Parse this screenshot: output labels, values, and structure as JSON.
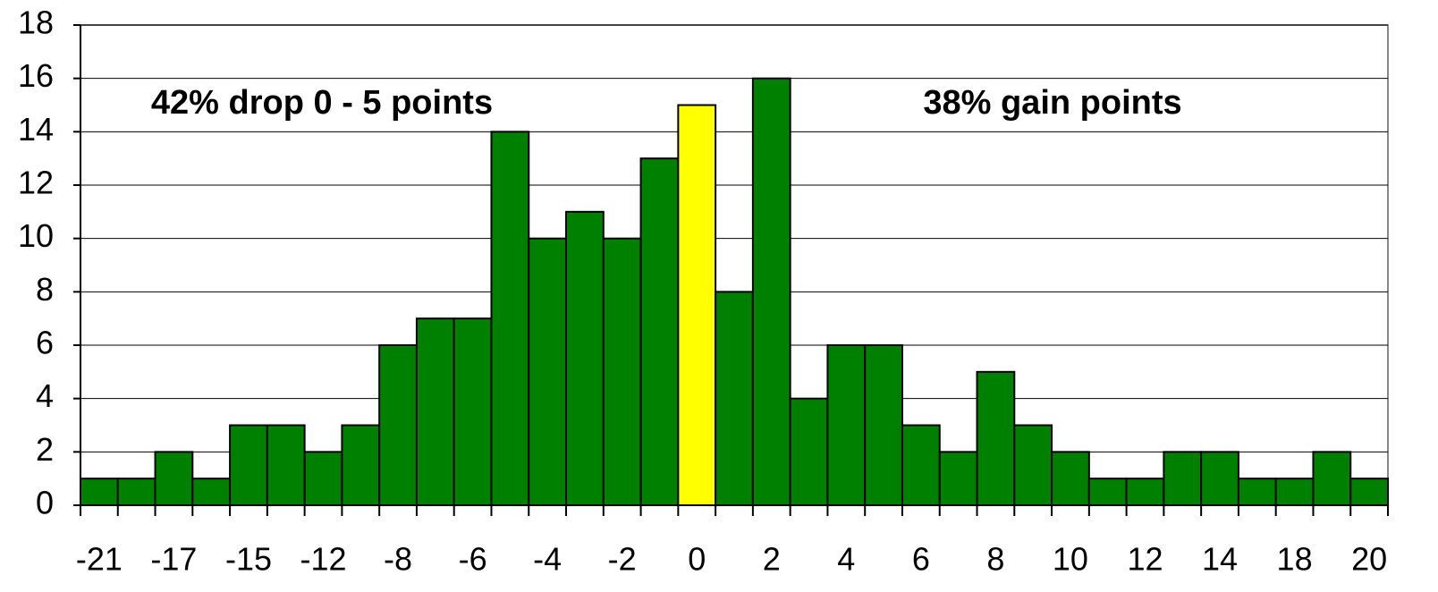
{
  "chart_data": {
    "type": "bar",
    "categories": [
      "-21",
      null,
      "-17",
      null,
      "-15",
      null,
      "-12",
      null,
      "-8",
      null,
      "-6",
      null,
      "-4",
      null,
      "-2",
      null,
      "0",
      null,
      "2",
      null,
      "4",
      null,
      "6",
      null,
      "8",
      null,
      "10",
      null,
      "12",
      null,
      "14",
      null,
      "18",
      null,
      "20"
    ],
    "values": [
      1,
      1,
      2,
      1,
      3,
      3,
      2,
      3,
      6,
      7,
      7,
      14,
      10,
      11,
      10,
      13,
      15,
      8,
      16,
      4,
      6,
      6,
      3,
      2,
      5,
      3,
      2,
      1,
      1,
      2,
      2,
      1,
      1,
      2,
      1
    ],
    "colors": [
      "#008000",
      "#008000",
      "#008000",
      "#008000",
      "#008000",
      "#008000",
      "#008000",
      "#008000",
      "#008000",
      "#008000",
      "#008000",
      "#008000",
      "#008000",
      "#008000",
      "#008000",
      "#008000",
      "#ffff00",
      "#008000",
      "#008000",
      "#008000",
      "#008000",
      "#008000",
      "#008000",
      "#008000",
      "#008000",
      "#008000",
      "#008000",
      "#008000",
      "#008000",
      "#008000",
      "#008000",
      "#008000",
      "#008000",
      "#008000",
      "#008000"
    ],
    "ylim": [
      0,
      18
    ],
    "yticks": [
      0,
      2,
      4,
      6,
      8,
      10,
      12,
      14,
      16,
      18
    ],
    "grid": true,
    "annotations": [
      "42% drop 0 - 5 points",
      "38% gain points"
    ]
  }
}
